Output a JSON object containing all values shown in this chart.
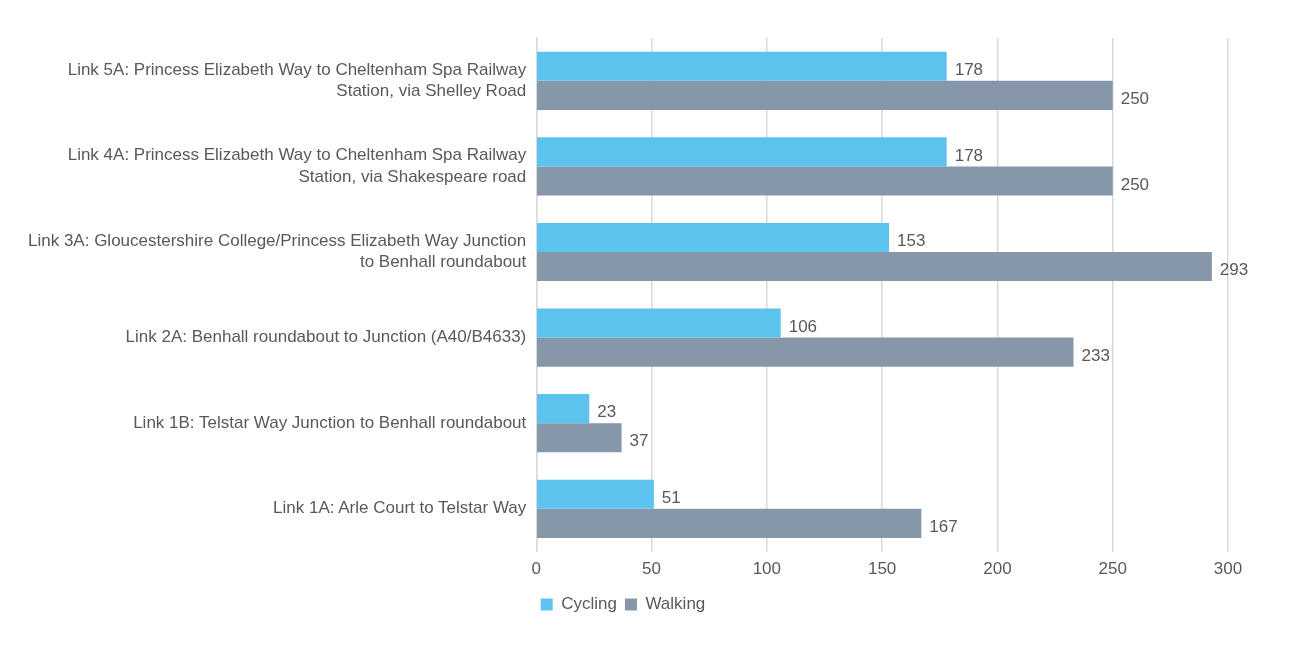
{
  "chart_data": {
    "type": "bar",
    "orientation": "horizontal",
    "categories": [
      "Link 5A: Princess Elizabeth Way to Cheltenham Spa Railway Station, via Shelley Road",
      "Link 4A: Princess Elizabeth Way to Cheltenham Spa Railway Station, via Shakespeare road",
      "Link 3A: Gloucestershire College/Princess Elizabeth Way Junction to Benhall roundabout",
      "Link 2A: Benhall roundabout to Junction (A40/B4633)",
      "Link 1B: Telstar Way Junction to Benhall roundabout",
      "Link 1A: Arle Court to Telstar Way"
    ],
    "series": [
      {
        "name": "Cycling",
        "color": "#5cc3ee",
        "values": [
          178,
          178,
          153,
          106,
          23,
          51
        ]
      },
      {
        "name": "Walking",
        "color": "#8597a9",
        "values": [
          250,
          250,
          293,
          233,
          37,
          167
        ]
      }
    ],
    "xlim": [
      0,
      300
    ],
    "xticks": [
      0,
      50,
      100,
      150,
      200,
      250,
      300
    ],
    "grid": "x",
    "legend": "bottom",
    "data_labels": true
  }
}
